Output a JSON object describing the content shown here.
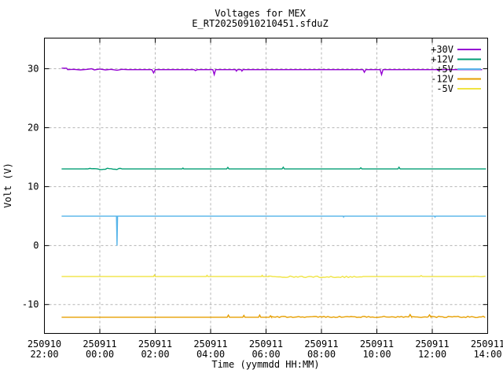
{
  "header": {
    "title": "Voltages for MEX",
    "subtitle": "E_RT20250910210451.sfduZ"
  },
  "chart_data": {
    "type": "line",
    "title": "Voltages for MEX",
    "subtitle": "E_RT20250910210451.sfduZ",
    "xlabel": "Time (yymmdd HH:MM)",
    "ylabel": "Volt (V)",
    "x_origin": "250910 22:00",
    "x_unit": "hours since 250910 22:00",
    "xlim_hours": [
      0,
      16
    ],
    "ylim": [
      -14.9,
      35.2
    ],
    "grid": true,
    "background_color": "#ffffff",
    "axis_color": "#000000",
    "grid_color": "#b5b5b5",
    "yticks": [
      -10,
      0,
      10,
      20,
      30
    ],
    "xticks": [
      {
        "h": 0,
        "date": "250910",
        "time": "22:00"
      },
      {
        "h": 2,
        "date": "250911",
        "time": "00:00"
      },
      {
        "h": 4,
        "date": "250911",
        "time": "02:00"
      },
      {
        "h": 6,
        "date": "250911",
        "time": "04:00"
      },
      {
        "h": 8,
        "date": "250911",
        "time": "06:00"
      },
      {
        "h": 10,
        "date": "250911",
        "time": "08:00"
      },
      {
        "h": 12,
        "date": "250911",
        "time": "10:00"
      },
      {
        "h": 14,
        "date": "250911",
        "time": "12:00"
      },
      {
        "h": 16,
        "date": "250911",
        "time": "14:00"
      }
    ],
    "legend": {
      "position": "top-right",
      "entries": [
        {
          "label": "+30V",
          "color": "#9400d3"
        },
        {
          "label": "+12V",
          "color": "#009e73"
        },
        {
          "label": "+5V",
          "color": "#56b4e9"
        },
        {
          "label": "-12V",
          "color": "#e69f00"
        },
        {
          "label": "-5V",
          "color": "#f0e442"
        }
      ]
    },
    "series": [
      {
        "name": "+30V",
        "color": "#9400d3",
        "base_value": 29.85,
        "segments": [
          {
            "points": [
              [
                0.62,
                30.1
              ],
              [
                0.8,
                30.1
              ],
              [
                0.84,
                29.85
              ],
              [
                1.05,
                29.9
              ],
              [
                1.3,
                29.8
              ],
              [
                1.55,
                29.9
              ],
              [
                1.7,
                30.0
              ],
              [
                1.8,
                29.8
              ],
              [
                2.0,
                29.95
              ],
              [
                2.2,
                29.8
              ],
              [
                2.4,
                29.9
              ],
              [
                2.62,
                29.75
              ],
              [
                2.8,
                29.9
              ],
              [
                3.0,
                29.85
              ],
              [
                3.88,
                29.85
              ],
              [
                3.94,
                29.3
              ],
              [
                4.0,
                29.85
              ],
              [
                5.4,
                29.85
              ],
              [
                5.45,
                29.7
              ],
              [
                5.52,
                29.85
              ],
              [
                6.08,
                29.85
              ],
              [
                6.13,
                29.0
              ],
              [
                6.18,
                29.85
              ],
              [
                6.9,
                29.85
              ],
              [
                6.93,
                29.6
              ],
              [
                6.97,
                29.85
              ],
              [
                7.1,
                29.85
              ],
              [
                7.13,
                29.6
              ],
              [
                7.17,
                29.85
              ],
              [
                11.5,
                29.85
              ],
              [
                11.55,
                29.4
              ],
              [
                11.6,
                29.85
              ],
              [
                12.12,
                29.85
              ],
              [
                12.17,
                29.0
              ],
              [
                12.22,
                29.85
              ],
              [
                14.18,
                29.85
              ],
              [
                14.21,
                29.7
              ],
              [
                14.25,
                29.85
              ],
              [
                15.8,
                29.85
              ]
            ]
          }
        ]
      },
      {
        "name": "+12V",
        "color": "#009e73",
        "base_value": 13.0,
        "segments": [
          {
            "points": [
              [
                0.62,
                13.0
              ],
              [
                1.5,
                13.0
              ]
            ]
          },
          {
            "noise": {
              "from": 1.5,
              "to": 2.8,
              "base": 13.0,
              "amp": 0.12
            }
          },
          {
            "points": [
              [
                2.8,
                13.0
              ],
              [
                4.97,
                13.0
              ],
              [
                5.0,
                13.15
              ],
              [
                5.03,
                13.0
              ],
              [
                6.58,
                13.0
              ],
              [
                6.62,
                13.25
              ],
              [
                6.66,
                13.0
              ],
              [
                8.58,
                13.0
              ],
              [
                8.62,
                13.3
              ],
              [
                8.66,
                13.0
              ],
              [
                11.38,
                13.0
              ],
              [
                11.42,
                13.2
              ],
              [
                11.46,
                13.0
              ],
              [
                12.76,
                13.0
              ],
              [
                12.8,
                13.3
              ],
              [
                12.84,
                13.0
              ],
              [
                15.94,
                13.0
              ]
            ]
          }
        ]
      },
      {
        "name": "+5V",
        "color": "#56b4e9",
        "base_value": 5.0,
        "segments": [
          {
            "points": [
              [
                0.62,
                5.0
              ],
              [
                2.6,
                5.0
              ],
              [
                2.62,
                0.0
              ],
              [
                2.64,
                5.0
              ],
              [
                10.78,
                5.0
              ],
              [
                10.8,
                4.85
              ],
              [
                10.82,
                5.0
              ],
              [
                14.08,
                5.0
              ],
              [
                14.1,
                4.85
              ],
              [
                14.12,
                5.0
              ],
              [
                15.94,
                5.0
              ]
            ]
          }
        ]
      },
      {
        "name": "-12V",
        "color": "#e69f00",
        "base_value": -12.15,
        "segments": [
          {
            "points": [
              [
                0.62,
                -12.15
              ],
              [
                6.6,
                -12.15
              ],
              [
                6.64,
                -11.8
              ],
              [
                6.68,
                -12.15
              ],
              [
                7.16,
                -12.15
              ],
              [
                7.2,
                -11.85
              ],
              [
                7.24,
                -12.15
              ],
              [
                7.73,
                -12.15
              ],
              [
                7.77,
                -11.8
              ],
              [
                7.81,
                -12.15
              ],
              [
                8.12,
                -12.15
              ],
              [
                8.16,
                -11.9
              ],
              [
                8.2,
                -12.15
              ]
            ]
          },
          {
            "noise": {
              "from": 8.2,
              "to": 13.15,
              "base": -12.1,
              "amp": 0.1
            }
          },
          {
            "points": [
              [
                13.15,
                -12.1
              ],
              [
                13.2,
                -11.7
              ],
              [
                13.25,
                -12.1
              ]
            ]
          },
          {
            "noise": {
              "from": 13.25,
              "to": 13.85,
              "base": -12.1,
              "amp": 0.1
            }
          },
          {
            "points": [
              [
                13.85,
                -12.1
              ],
              [
                13.9,
                -11.75
              ],
              [
                13.95,
                -12.1
              ]
            ]
          },
          {
            "noise": {
              "from": 13.95,
              "to": 15.94,
              "base": -12.1,
              "amp": 0.12
            }
          }
        ]
      },
      {
        "name": "-5V",
        "color": "#f0e442",
        "base_value": -5.25,
        "segments": [
          {
            "points": [
              [
                0.62,
                -5.25
              ],
              [
                3.94,
                -5.25
              ],
              [
                3.97,
                -5.0
              ],
              [
                4.0,
                -5.25
              ],
              [
                5.84,
                -5.25
              ],
              [
                5.87,
                -5.05
              ],
              [
                5.9,
                -5.25
              ],
              [
                7.83,
                -5.25
              ],
              [
                7.86,
                -5.05
              ],
              [
                7.89,
                -5.25
              ],
              [
                8.1,
                -5.25
              ]
            ]
          },
          {
            "noise": {
              "from": 8.1,
              "to": 11.5,
              "base": -5.3,
              "amp": 0.13
            }
          },
          {
            "points": [
              [
                11.5,
                -5.25
              ],
              [
                13.55,
                -5.25
              ],
              [
                13.6,
                -5.1
              ],
              [
                13.65,
                -5.25
              ],
              [
                15.5,
                -5.25
              ]
            ]
          },
          {
            "noise": {
              "from": 15.5,
              "to": 15.94,
              "base": -5.25,
              "amp": 0.08
            }
          }
        ]
      }
    ]
  }
}
